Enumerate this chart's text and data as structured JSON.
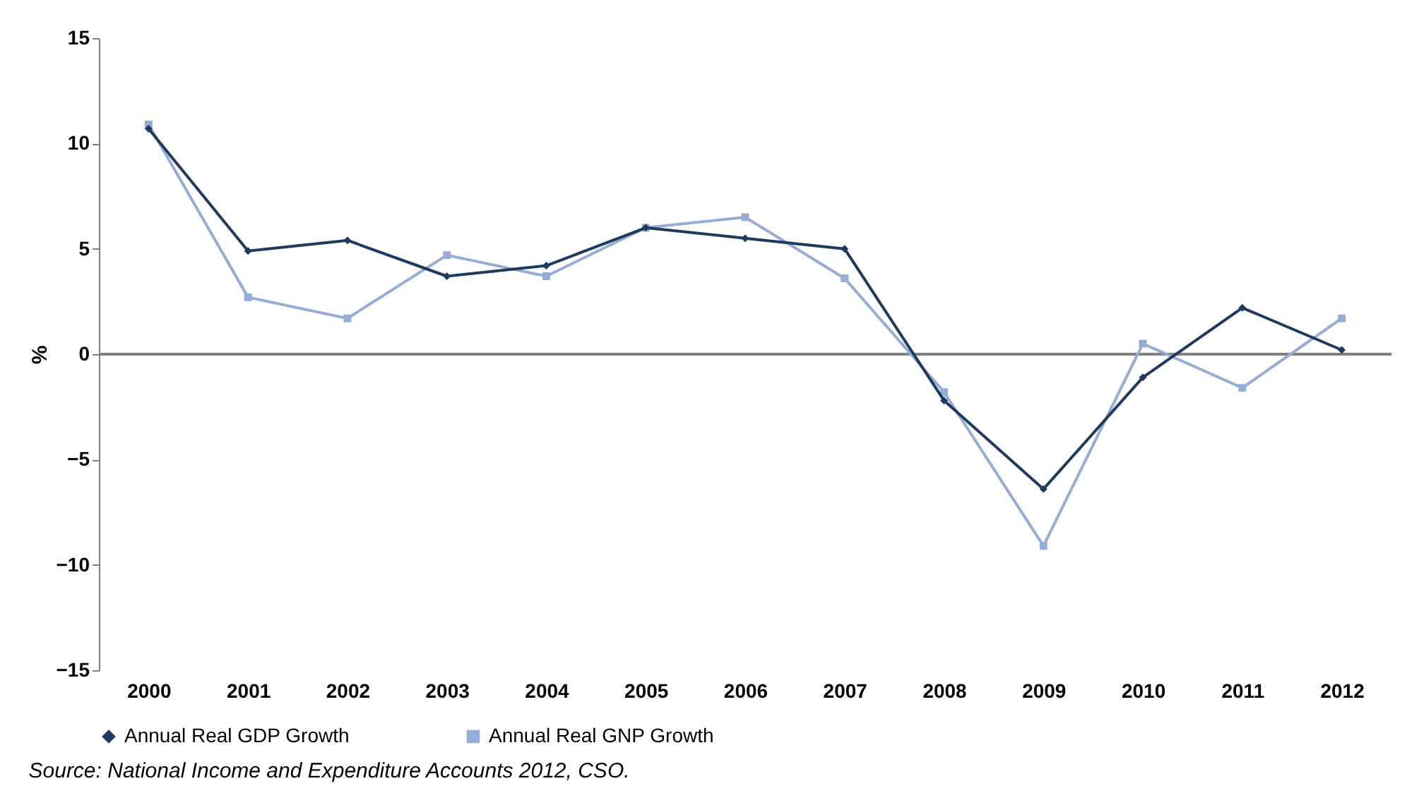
{
  "chart_data": {
    "type": "line",
    "ylabel": "%",
    "categories": [
      "2000",
      "2001",
      "2002",
      "2003",
      "2004",
      "2005",
      "2006",
      "2007",
      "2008",
      "2009",
      "2010",
      "2011",
      "2012"
    ],
    "series": [
      {
        "name": "Annual Real GDP Growth",
        "color": "#1f3a5f",
        "marker": "diamond",
        "values": [
          10.7,
          4.9,
          5.4,
          3.7,
          4.2,
          6.0,
          5.5,
          5.0,
          -2.2,
          -6.4,
          -1.1,
          2.2,
          0.2
        ]
      },
      {
        "name": "Annual Real GNP Growth",
        "color": "#95acd6",
        "marker": "square",
        "values": [
          10.9,
          2.7,
          1.7,
          4.7,
          3.7,
          6.0,
          6.5,
          3.6,
          -1.8,
          -9.1,
          0.5,
          -1.6,
          1.7
        ]
      }
    ],
    "ylim": [
      -15,
      15
    ],
    "yticks": [
      -15,
      -10,
      -5,
      0,
      5,
      10,
      15
    ],
    "ref_lines": [
      {
        "axis": "y",
        "value": 0,
        "color": "#808080"
      }
    ],
    "grid": false,
    "legend": "bottom",
    "annotations": [
      "Source: National Income and Expenditure Accounts 2012, CSO."
    ]
  }
}
